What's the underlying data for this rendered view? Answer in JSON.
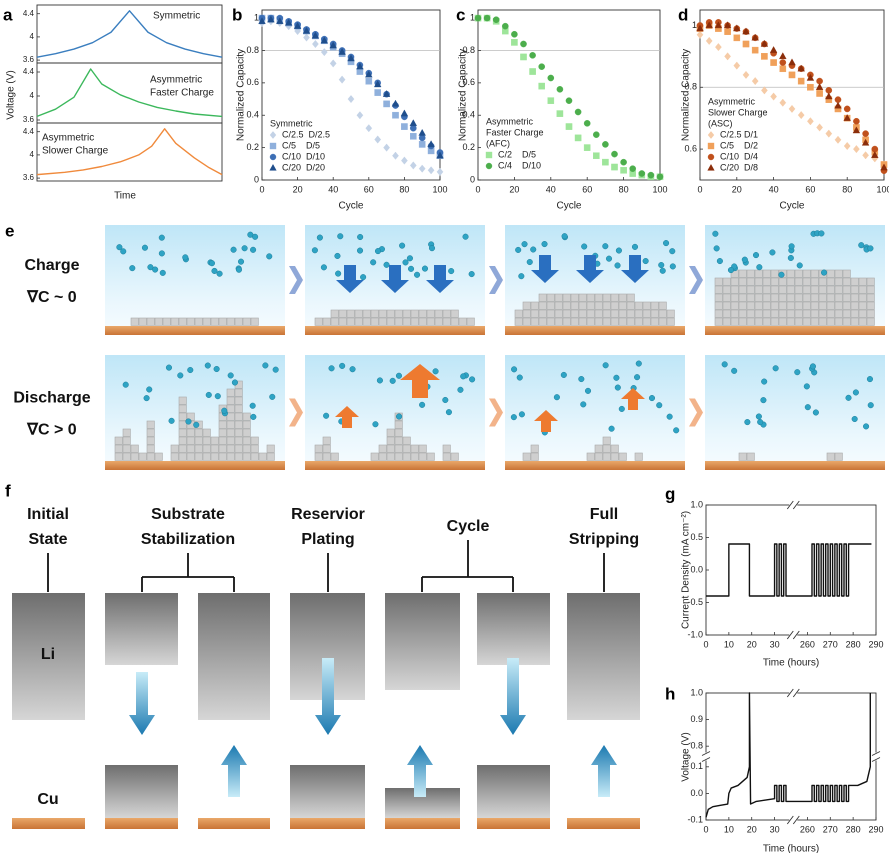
{
  "chart_data": [
    {
      "type": "line",
      "panel": "a",
      "ylabel": "Voltage (V)",
      "annotation": [
        "Symmetric"
      ],
      "xlim": [
        0,
        10
      ],
      "ylim": [
        3.55,
        4.55
      ],
      "yticks": [
        3.6,
        4,
        4.4
      ],
      "series": [
        {
          "color": "#3a7ebf",
          "x": [
            0,
            1,
            2,
            3,
            4,
            5,
            6,
            7,
            8,
            9,
            10
          ],
          "values": [
            3.65,
            3.71,
            3.79,
            3.9,
            4.08,
            4.45,
            4.08,
            3.9,
            3.79,
            3.71,
            3.65
          ]
        }
      ]
    },
    {
      "type": "line",
      "annotation": [
        "Asymmetric",
        "Faster Charge"
      ],
      "xlim": [
        0,
        10
      ],
      "ylim": [
        3.55,
        4.55
      ],
      "yticks": [
        3.6,
        4,
        4.4
      ],
      "series": [
        {
          "color": "#3cb85c",
          "x": [
            0,
            1,
            2,
            2.9,
            3.5,
            4.5,
            5.5,
            6.5,
            7.5,
            8.5,
            10
          ],
          "values": [
            3.66,
            3.78,
            3.98,
            4.45,
            4.2,
            4.02,
            3.9,
            3.81,
            3.75,
            3.7,
            3.66
          ]
        }
      ]
    },
    {
      "type": "line",
      "xlabel": "Time",
      "annotation": [
        "Asymmetric",
        "Slower Charge"
      ],
      "xlim": [
        0,
        10
      ],
      "ylim": [
        3.55,
        4.55
      ],
      "yticks": [
        3.6,
        4,
        4.4
      ],
      "series": [
        {
          "color": "#f08a3c",
          "x": [
            0,
            1.5,
            2.5,
            3.5,
            4.5,
            5.5,
            6.2,
            6.9,
            7.5,
            8.5,
            9.3,
            10
          ],
          "values": [
            3.66,
            3.7,
            3.74,
            3.8,
            3.88,
            4.0,
            4.15,
            4.45,
            4.2,
            3.95,
            3.78,
            3.66
          ]
        }
      ]
    },
    {
      "type": "scatter",
      "panel": "b",
      "xlabel": "Cycle",
      "ylabel": "Normalized Capacity",
      "legend_title": [
        "Symmetric"
      ],
      "hline": 0.8,
      "xlim": [
        0,
        100
      ],
      "ylim": [
        0,
        1.05
      ],
      "xticks": [
        0,
        20,
        40,
        60,
        80,
        100
      ],
      "yticks": [
        0,
        0.2,
        0.4,
        0.6,
        0.8,
        1
      ],
      "x": [
        0,
        5,
        10,
        15,
        20,
        25,
        30,
        35,
        40,
        45,
        50,
        55,
        60,
        65,
        70,
        75,
        80,
        85,
        90,
        95,
        100
      ],
      "series": [
        {
          "name": "C/2.5  D/2.5",
          "marker": "diamond",
          "color": "#c3d2e6",
          "values": [
            0.97,
            0.98,
            0.97,
            0.95,
            0.92,
            0.88,
            0.84,
            0.79,
            0.72,
            0.62,
            0.5,
            0.4,
            0.32,
            0.25,
            0.2,
            0.15,
            0.12,
            0.09,
            0.07,
            0.06,
            0.05
          ]
        },
        {
          "name": "C/5    D/5",
          "marker": "square",
          "color": "#8fb0dc",
          "values": [
            1.0,
            1.0,
            0.99,
            0.97,
            0.95,
            0.92,
            0.89,
            0.86,
            0.82,
            0.78,
            0.73,
            0.67,
            0.61,
            0.54,
            0.47,
            0.4,
            0.33,
            0.27,
            0.22,
            0.18,
            0.15
          ]
        },
        {
          "name": "C/10  D/10",
          "marker": "circle",
          "color": "#3d6fb5",
          "values": [
            1.0,
            1.0,
            1.0,
            0.98,
            0.96,
            0.93,
            0.9,
            0.87,
            0.84,
            0.8,
            0.76,
            0.71,
            0.66,
            0.6,
            0.53,
            0.46,
            0.39,
            0.32,
            0.26,
            0.21,
            0.17
          ]
        },
        {
          "name": "C/20  D/20",
          "marker": "triangle",
          "color": "#1f4e8c",
          "values": [
            0.98,
            0.99,
            0.98,
            0.97,
            0.95,
            0.92,
            0.89,
            0.86,
            0.83,
            0.79,
            0.75,
            0.7,
            0.65,
            0.59,
            0.53,
            0.47,
            0.41,
            0.35,
            0.29,
            0.22,
            0.15
          ]
        }
      ]
    },
    {
      "type": "scatter",
      "panel": "c",
      "xlabel": "Cycle",
      "ylabel": "Normalized Capacity",
      "legend_title": [
        "Asymmetric",
        "Faster Charge",
        "(AFC)"
      ],
      "hline": 0.8,
      "xlim": [
        0,
        100
      ],
      "ylim": [
        0,
        1.05
      ],
      "xticks": [
        0,
        20,
        40,
        60,
        80,
        100
      ],
      "yticks": [
        0,
        0.2,
        0.4,
        0.6,
        0.8,
        1
      ],
      "x": [
        0,
        5,
        10,
        15,
        20,
        25,
        30,
        35,
        40,
        45,
        50,
        55,
        60,
        65,
        70,
        75,
        80,
        85,
        90,
        95,
        100
      ],
      "series": [
        {
          "name": "C/2    D/5",
          "marker": "square",
          "color": "#9ee59a",
          "values": [
            1.0,
            1.0,
            0.98,
            0.92,
            0.85,
            0.76,
            0.67,
            0.58,
            0.49,
            0.41,
            0.33,
            0.26,
            0.2,
            0.15,
            0.11,
            0.08,
            0.06,
            0.04,
            0.03,
            0.02,
            0.02
          ]
        },
        {
          "name": "C/4    D/10",
          "marker": "circle",
          "color": "#4cae4c",
          "values": [
            1.0,
            1.0,
            0.99,
            0.95,
            0.9,
            0.84,
            0.77,
            0.7,
            0.63,
            0.56,
            0.49,
            0.42,
            0.35,
            0.28,
            0.22,
            0.16,
            0.11,
            0.07,
            0.04,
            0.03,
            0.02
          ]
        }
      ]
    },
    {
      "type": "scatter",
      "panel": "d",
      "xlabel": "Cycle",
      "ylabel": "Normalized Capacity",
      "legend_title": [
        "Asymmetric",
        "Slower Charge",
        "(ASC)"
      ],
      "hline": 0.8,
      "xlim": [
        0,
        100
      ],
      "ylim": [
        0.5,
        1.05
      ],
      "xticks": [
        0,
        20,
        40,
        60,
        80,
        100
      ],
      "yticks": [
        0.6,
        0.8,
        1
      ],
      "x": [
        0,
        5,
        10,
        15,
        20,
        25,
        30,
        35,
        40,
        45,
        50,
        55,
        60,
        65,
        70,
        75,
        80,
        85,
        90,
        95,
        100
      ],
      "series": [
        {
          "name": "C/2.5 D/1",
          "marker": "diamond",
          "color": "#f5cba7",
          "values": [
            0.97,
            0.95,
            0.93,
            0.9,
            0.87,
            0.84,
            0.82,
            0.79,
            0.77,
            0.75,
            0.73,
            0.71,
            0.69,
            0.67,
            0.65,
            0.63,
            0.61,
            0.6,
            0.58,
            0.57,
            0.55
          ]
        },
        {
          "name": "C/5    D/2",
          "marker": "square",
          "color": "#f0a05a",
          "values": [
            0.99,
            1.0,
            0.99,
            0.98,
            0.96,
            0.94,
            0.92,
            0.9,
            0.88,
            0.86,
            0.84,
            0.82,
            0.8,
            0.78,
            0.76,
            0.73,
            0.7,
            0.67,
            0.63,
            0.59,
            0.55
          ]
        },
        {
          "name": "C/10  D/4",
          "marker": "circle",
          "color": "#c0501c",
          "values": [
            1.0,
            1.01,
            1.01,
            1.0,
            0.99,
            0.98,
            0.96,
            0.94,
            0.91,
            0.88,
            0.87,
            0.86,
            0.84,
            0.82,
            0.79,
            0.76,
            0.73,
            0.69,
            0.65,
            0.6,
            0.53
          ]
        },
        {
          "name": "C/20  D/8",
          "marker": "triangle",
          "color": "#8b2d0a",
          "values": [
            0.99,
            1.0,
            1.0,
            1.0,
            0.99,
            0.98,
            0.96,
            0.94,
            0.92,
            0.9,
            0.88,
            0.86,
            0.83,
            0.8,
            0.77,
            0.74,
            0.7,
            0.66,
            0.62,
            0.58,
            0.54
          ]
        }
      ]
    },
    {
      "type": "line",
      "panel": "g",
      "xlabel": "Time (hours)",
      "ylabel": "Current Density (mA cm⁻²)",
      "xlim": [
        0,
        290
      ],
      "xbreak": [
        36,
        256
      ],
      "ylim": [
        -1,
        1
      ],
      "xticks": [
        0,
        10,
        20,
        30,
        260,
        270,
        280,
        290
      ],
      "yticks": [
        {
          "value": -1,
          "label": "-1.0"
        },
        -0.5,
        {
          "value": 0,
          "label": "0.0"
        },
        0.5,
        {
          "value": 1,
          "label": "1.0"
        }
      ],
      "series": [
        {
          "color": "#111111",
          "x": [
            0,
            10,
            10,
            19,
            19,
            30,
            30,
            31,
            31,
            32,
            32,
            33,
            33,
            34,
            34,
            35,
            35,
            262,
            262,
            263,
            263,
            264,
            264,
            265,
            265,
            266,
            266,
            267,
            267,
            268,
            268,
            269,
            269,
            270,
            270,
            271,
            271,
            272,
            272,
            273,
            273,
            274,
            274,
            275,
            275,
            276,
            276,
            277,
            277,
            278,
            278,
            288
          ],
          "values": [
            -0.4,
            -0.4,
            0.4,
            0.4,
            -0.4,
            -0.4,
            0.4,
            0.4,
            -0.4,
            -0.4,
            0.4,
            0.4,
            -0.4,
            -0.4,
            0.4,
            0.4,
            -0.4,
            -0.4,
            0.4,
            0.4,
            -0.4,
            -0.4,
            0.4,
            0.4,
            -0.4,
            -0.4,
            0.4,
            0.4,
            -0.4,
            -0.4,
            0.4,
            0.4,
            -0.4,
            -0.4,
            0.4,
            0.4,
            -0.4,
            -0.4,
            0.4,
            0.4,
            -0.4,
            -0.4,
            0.4,
            0.4,
            -0.4,
            -0.4,
            0.4,
            0.4,
            -0.4,
            -0.4,
            0.4,
            0.4
          ]
        }
      ]
    },
    {
      "type": "line",
      "panel": "h",
      "xlabel": "Time (hours)",
      "ylabel": "Voltage (V)",
      "xlim": [
        0,
        290
      ],
      "xbreak": [
        36,
        256
      ],
      "ylim": [
        -0.1,
        1
      ],
      "ybreak": [
        0.12,
        0.78
      ],
      "xticks": [
        0,
        10,
        20,
        30,
        260,
        270,
        280,
        290
      ],
      "yticks": [
        -0.1,
        {
          "value": 0,
          "label": "0.0"
        },
        0.1,
        0.8,
        0.9,
        {
          "value": 1,
          "label": "1.0"
        }
      ],
      "series": [
        {
          "color": "#111111",
          "x": [
            0,
            1,
            3,
            6,
            9.5,
            10,
            11,
            14,
            18,
            19,
            19,
            19.5,
            22,
            26,
            30,
            30,
            31,
            31,
            32,
            32,
            33,
            33,
            34,
            34,
            35,
            35,
            262,
            262,
            263,
            263,
            264,
            264,
            265,
            265,
            266,
            266,
            267,
            267,
            268,
            268,
            269,
            269,
            270,
            270,
            271,
            271,
            272,
            272,
            273,
            273,
            274,
            274,
            275,
            275,
            276,
            276,
            277,
            277,
            278,
            278,
            282,
            286,
            287.5,
            287.5
          ],
          "values": [
            -0.09,
            -0.06,
            -0.05,
            -0.045,
            -0.04,
            0,
            0.02,
            0.03,
            0.06,
            0.1,
            1,
            -0.04,
            -0.03,
            -0.025,
            -0.02,
            0.03,
            0.03,
            -0.03,
            -0.03,
            0.03,
            0.03,
            -0.03,
            -0.03,
            0.03,
            0.03,
            -0.03,
            -0.03,
            0.03,
            0.03,
            -0.03,
            -0.03,
            0.03,
            0.03,
            -0.03,
            -0.03,
            0.03,
            0.03,
            -0.03,
            -0.03,
            0.03,
            0.03,
            -0.03,
            -0.03,
            0.03,
            0.03,
            -0.03,
            -0.03,
            0.03,
            0.03,
            -0.03,
            -0.03,
            0.03,
            0.03,
            -0.03,
            -0.03,
            0.03,
            0.03,
            -0.03,
            -0.03,
            0.03,
            0.03,
            0.045,
            0.1,
            1
          ]
        }
      ]
    }
  ],
  "schematic_e": {
    "label": "e",
    "rows": [
      {
        "title": "Charge",
        "gradient": "∇C ~ 0"
      },
      {
        "title": "Discharge",
        "gradient": "∇C > 0"
      }
    ]
  },
  "schematic_f": {
    "label": "f",
    "stages": [
      [
        "Initial",
        "State"
      ],
      [
        "Substrate",
        "Stabilization"
      ],
      [
        "Reservior",
        "Plating"
      ],
      [
        "Cycle"
      ],
      [
        "Full",
        "Stripping"
      ]
    ],
    "li": "Li",
    "cu": "Cu"
  }
}
